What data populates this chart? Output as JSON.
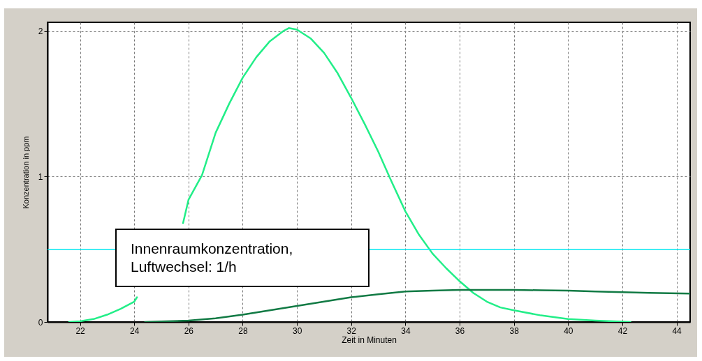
{
  "chart_data": {
    "type": "line",
    "xlabel": "Zeit in Minuten",
    "ylabel": "Konzentration in ppm",
    "annotations": [
      "Innenraumkonzentration,\nLuftwechsel: 1/h"
    ],
    "xlim": [
      20.8,
      44.5
    ],
    "ylim": [
      0,
      2.06
    ],
    "xticks": [
      22,
      24,
      26,
      28,
      30,
      32,
      34,
      36,
      38,
      40,
      42,
      44
    ],
    "yticks": [
      0,
      1,
      2
    ],
    "grid": true,
    "marker": "none",
    "line_style": "solid",
    "ref_lines": [
      {
        "axis": "y",
        "value": 0.5,
        "color": "#00e8f0"
      }
    ],
    "series": [
      {
        "color": "#22ee88",
        "x": [
          21.6,
          22,
          22.5,
          23,
          23.5,
          24,
          24.1,
          25,
          25.8,
          26,
          26.5,
          27,
          27.5,
          28,
          28.5,
          29,
          29.5,
          29.7,
          30,
          30.5,
          31,
          31.5,
          32,
          32.5,
          33,
          33.5,
          34,
          34.5,
          35,
          35.5,
          36,
          36.5,
          37,
          37.5,
          38,
          39,
          40,
          41,
          42.3
        ],
        "values": [
          0,
          0.005,
          0.02,
          0.05,
          0.09,
          0.14,
          0.17,
          null,
          0.68,
          0.84,
          1.01,
          1.3,
          1.5,
          1.68,
          1.82,
          1.93,
          2.0,
          2.02,
          2.01,
          1.95,
          1.85,
          1.71,
          1.54,
          1.36,
          1.17,
          0.96,
          0.76,
          0.6,
          0.47,
          0.37,
          0.28,
          0.2,
          0.14,
          0.1,
          0.08,
          0.045,
          0.02,
          0.01,
          0
        ]
      },
      {
        "color": "#117a44",
        "x": [
          24.4,
          25,
          26,
          27,
          28,
          29,
          30,
          31,
          32,
          33,
          34,
          35,
          36,
          37,
          38,
          39,
          40,
          41,
          42,
          43,
          44.5
        ],
        "values": [
          0,
          0.003,
          0.01,
          0.025,
          0.05,
          0.08,
          0.11,
          0.14,
          0.17,
          0.19,
          0.21,
          0.215,
          0.22,
          0.22,
          0.22,
          0.218,
          0.215,
          0.21,
          0.205,
          0.2,
          0.195
        ]
      }
    ]
  }
}
